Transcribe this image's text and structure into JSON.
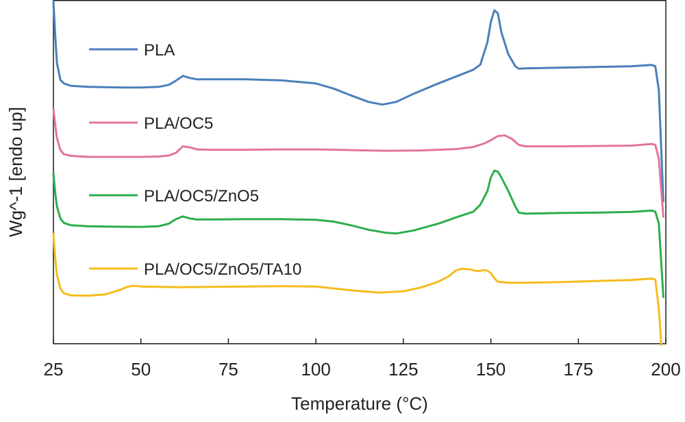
{
  "chart_data": {
    "type": "line",
    "title": "",
    "xlabel": "Temperature (°C)",
    "ylabel": "Wg^-1  [endo up]",
    "xlim": [
      25,
      200
    ],
    "ylim": [
      0,
      100
    ],
    "x_ticks": [
      25,
      50,
      75,
      100,
      125,
      150,
      175,
      200
    ],
    "y_ticks_shown": false,
    "grid": false,
    "legend_position": "inline-left",
    "series": [
      {
        "name": "PLA",
        "color": "#4a7ebb",
        "x": [
          25,
          25.5,
          26,
          27,
          28,
          30,
          35,
          40,
          45,
          50,
          55,
          58,
          60,
          62,
          64,
          66,
          70,
          80,
          90,
          100,
          105,
          110,
          115,
          119,
          123,
          128,
          135,
          140,
          145,
          147,
          149,
          150,
          151,
          152,
          153,
          155,
          157,
          158,
          160,
          170,
          180,
          190,
          196,
          197,
          198,
          199.3
        ],
        "y": [
          100,
          90,
          82,
          77,
          76,
          75.3,
          75,
          74.9,
          74.8,
          74.8,
          75,
          75.6,
          76.8,
          78.2,
          77.6,
          77.2,
          77.2,
          77.2,
          76.9,
          76,
          74.5,
          72.5,
          70.6,
          69.8,
          70.6,
          73,
          76,
          78,
          80,
          81.5,
          88,
          94,
          97.4,
          96.5,
          91,
          84.5,
          81,
          80.3,
          80.4,
          80.6,
          80.8,
          81,
          81.4,
          81,
          74,
          41.5
        ]
      },
      {
        "name": "PLA/OC5",
        "color": "#e2749e",
        "x": [
          25,
          25.5,
          26,
          27,
          28,
          30,
          35,
          40,
          50,
          55,
          58,
          60,
          62,
          64,
          66,
          70,
          80,
          90,
          100,
          110,
          120,
          130,
          140,
          145,
          148,
          150,
          152,
          154,
          156,
          158,
          160,
          170,
          180,
          190,
          196,
          197,
          198,
          199.3
        ],
        "y": [
          68.5,
          64,
          60,
          56.5,
          55.3,
          54.8,
          54.5,
          54.5,
          54.5,
          54.6,
          54.9,
          55.7,
          57.6,
          57.3,
          56.7,
          56.6,
          56.6,
          56.7,
          56.7,
          56.5,
          56.3,
          56.4,
          56.8,
          57.4,
          58.4,
          59.4,
          60.6,
          60.8,
          59.8,
          58,
          57.6,
          57.6,
          57.7,
          57.8,
          58.3,
          58,
          54,
          37
        ]
      },
      {
        "name": "PLA/OC5/ZnO5",
        "color": "#2bae4c",
        "x": [
          25,
          25.5,
          26,
          27,
          28,
          30,
          35,
          40,
          50,
          55,
          58,
          60,
          62,
          64,
          66,
          70,
          80,
          90,
          100,
          105,
          110,
          115,
          120,
          123,
          128,
          135,
          140,
          145,
          147,
          149,
          150,
          151,
          152,
          153,
          155,
          157,
          158,
          160,
          170,
          180,
          190,
          196,
          197,
          198,
          199.3
        ],
        "y": [
          49.5,
          44,
          40,
          36.5,
          35.2,
          34.5,
          34.2,
          34.1,
          34,
          34.2,
          35,
          36.3,
          37.1,
          36.5,
          36.2,
          36.2,
          36.3,
          36.3,
          36.1,
          35.6,
          34.5,
          33.2,
          32.3,
          32.1,
          33,
          35,
          36.8,
          38.5,
          40.5,
          44.5,
          48.5,
          50.5,
          50.2,
          48.5,
          44.5,
          40,
          38.2,
          37.9,
          38.1,
          38.2,
          38.4,
          38.8,
          38.5,
          35,
          13.5
        ]
      },
      {
        "name": "PLA/OC5/ZnO5/TA10",
        "color": "#f5bc1c",
        "x": [
          25,
          25.5,
          26,
          27,
          28,
          30,
          35,
          40,
          44,
          46,
          48,
          50,
          55,
          60,
          70,
          80,
          90,
          100,
          110,
          118,
          125,
          130,
          135,
          138,
          140,
          142,
          144,
          146,
          147,
          148,
          149,
          150,
          151,
          152,
          155,
          160,
          170,
          180,
          190,
          196,
          197,
          198,
          198.7
        ],
        "y": [
          32,
          25,
          20,
          16,
          14.6,
          14,
          13.9,
          14.3,
          15.6,
          16.5,
          16.8,
          16.6,
          16.5,
          16.4,
          16.5,
          16.6,
          16.7,
          16.6,
          15.5,
          14.8,
          15.2,
          16.3,
          18,
          19.6,
          21.3,
          21.8,
          21.6,
          21.1,
          21.2,
          21.4,
          21.2,
          20.5,
          19,
          18,
          17.7,
          17.7,
          17.9,
          18.2,
          18.5,
          18.9,
          18.6,
          10,
          -0.5
        ]
      }
    ]
  }
}
